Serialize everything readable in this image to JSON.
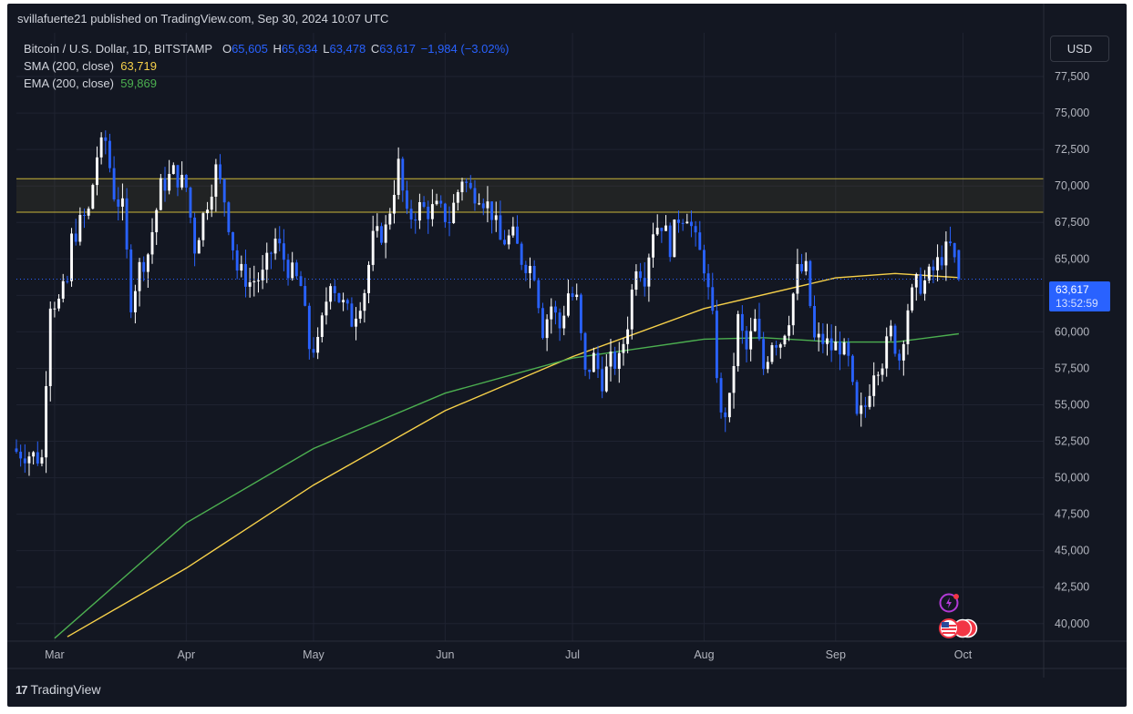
{
  "header": {
    "publisher": "svillafuerte21 published on TradingView.com, Sep 30, 2024 10:07 UTC"
  },
  "legend": {
    "symbol": "Bitcoin / U.S. Dollar, 1D, BITSTAMP",
    "open_label": "O",
    "open": "65,605",
    "high_label": "H",
    "high": "65,634",
    "low_label": "L",
    "low": "63,478",
    "close_label": "C",
    "close": "63,617",
    "change": "−1,984 (−3.02%)",
    "sma_label": "SMA (200, close)",
    "sma_value": "63,719",
    "ema_label": "EMA (200, close)",
    "ema_value": "59,869"
  },
  "toolbar": {
    "currency_button": "USD"
  },
  "price_tag": {
    "price": "63,617",
    "countdown": "13:52:59"
  },
  "footer": {
    "brand": "TradingView",
    "logo": "17"
  },
  "colors": {
    "background": "#131722",
    "bearish": "#2962ff",
    "bullish": "#ffffff",
    "sma": "#f7d14a",
    "ema": "#4caf50",
    "zone": "#c9b53a"
  },
  "icons": [
    "lightning-event-icon",
    "us-flag-economic-events-icon",
    "tradingview-logo-icon"
  ],
  "chart_data": {
    "type": "candlestick",
    "title": "Bitcoin / U.S. Dollar, 1D, BITSTAMP",
    "ylabel": "USD",
    "ylim": [
      38800,
      80500
    ],
    "y_ticks": [
      40000,
      42500,
      45000,
      47500,
      50000,
      52500,
      55000,
      57500,
      60000,
      62500,
      65000,
      67500,
      70000,
      72500,
      75000,
      77500
    ],
    "y_tick_labels": [
      "40,000",
      "42,500",
      "45,000",
      "47,500",
      "50,000",
      "52,500",
      "55,000",
      "57,500",
      "60,000",
      "62,500",
      "65,000",
      "67,500",
      "70,000",
      "72,500",
      "75,000",
      "77,500"
    ],
    "x_tick_labels": [
      "Mar",
      "Apr",
      "May",
      "Jun",
      "Jul",
      "Aug",
      "Sep",
      "Oct"
    ],
    "x_tick_dates": [
      "2024-03-01",
      "2024-04-01",
      "2024-05-01",
      "2024-06-01",
      "2024-07-01",
      "2024-08-01",
      "2024-09-01",
      "2024-10-01"
    ],
    "x_range": [
      "2024-02-21",
      "2024-10-20"
    ],
    "grid": true,
    "resistance_zone": {
      "low": 68200,
      "high": 70500
    },
    "last_price": 63617,
    "close_series": [
      [
        "2024-02-21",
        51800
      ],
      [
        "2024-02-24",
        51600
      ],
      [
        "2024-02-27",
        51300
      ],
      [
        "2024-02-28",
        57000
      ],
      [
        "2024-02-29",
        62200
      ],
      [
        "2024-03-02",
        62000
      ],
      [
        "2024-03-04",
        63400
      ],
      [
        "2024-03-05",
        66300
      ],
      [
        "2024-03-07",
        67400
      ],
      [
        "2024-03-09",
        68200
      ],
      [
        "2024-03-11",
        72100
      ],
      [
        "2024-03-13",
        73100
      ],
      [
        "2024-03-15",
        69500
      ],
      [
        "2024-03-17",
        68400
      ],
      [
        "2024-03-19",
        62100
      ],
      [
        "2024-03-21",
        64400
      ],
      [
        "2024-03-23",
        65400
      ],
      [
        "2024-03-26",
        69900
      ],
      [
        "2024-03-29",
        70900
      ],
      [
        "2024-04-01",
        69900
      ],
      [
        "2024-04-03",
        65800
      ],
      [
        "2024-04-06",
        69000
      ],
      [
        "2024-04-08",
        71100
      ],
      [
        "2024-04-10",
        69100
      ],
      [
        "2024-04-13",
        64300
      ],
      [
        "2024-04-16",
        63400
      ],
      [
        "2024-04-19",
        63800
      ],
      [
        "2024-04-22",
        66300
      ],
      [
        "2024-04-25",
        64400
      ],
      [
        "2024-04-28",
        63100
      ],
      [
        "2024-04-30",
        59000
      ],
      [
        "2024-05-02",
        59000
      ],
      [
        "2024-05-05",
        63800
      ],
      [
        "2024-05-07",
        62300
      ],
      [
        "2024-05-10",
        60800
      ],
      [
        "2024-05-13",
        62900
      ],
      [
        "2024-05-15",
        66300
      ],
      [
        "2024-05-18",
        67000
      ],
      [
        "2024-05-21",
        71400
      ],
      [
        "2024-05-23",
        67700
      ],
      [
        "2024-05-26",
        68500
      ],
      [
        "2024-05-28",
        68300
      ],
      [
        "2024-05-30",
        68400
      ],
      [
        "2024-06-02",
        67700
      ],
      [
        "2024-06-05",
        70600
      ],
      [
        "2024-06-07",
        69600
      ],
      [
        "2024-06-09",
        69600
      ],
      [
        "2024-06-12",
        68200
      ],
      [
        "2024-06-14",
        66200
      ],
      [
        "2024-06-17",
        66500
      ],
      [
        "2024-06-19",
        65000
      ],
      [
        "2024-06-22",
        64200
      ],
      [
        "2024-06-24",
        60200
      ],
      [
        "2024-06-26",
        61800
      ],
      [
        "2024-06-28",
        60300
      ],
      [
        "2024-06-30",
        62700
      ],
      [
        "2024-07-02",
        62100
      ],
      [
        "2024-07-04",
        57000
      ],
      [
        "2024-07-06",
        58200
      ],
      [
        "2024-07-08",
        56700
      ],
      [
        "2024-07-10",
        57900
      ],
      [
        "2024-07-12",
        57900
      ],
      [
        "2024-07-14",
        60700
      ],
      [
        "2024-07-16",
        64800
      ],
      [
        "2024-07-18",
        63900
      ],
      [
        "2024-07-20",
        67100
      ],
      [
        "2024-07-22",
        67500
      ],
      [
        "2024-07-24",
        65900
      ],
      [
        "2024-07-26",
        67900
      ],
      [
        "2024-07-28",
        68200
      ],
      [
        "2024-07-30",
        66100
      ],
      [
        "2024-08-01",
        64600
      ],
      [
        "2024-08-03",
        60700
      ],
      [
        "2024-08-05",
        54000
      ],
      [
        "2024-08-07",
        55100
      ],
      [
        "2024-08-09",
        60800
      ],
      [
        "2024-08-11",
        58700
      ],
      [
        "2024-08-13",
        60600
      ],
      [
        "2024-08-15",
        57500
      ],
      [
        "2024-08-17",
        59500
      ],
      [
        "2024-08-19",
        59400
      ],
      [
        "2024-08-21",
        61100
      ],
      [
        "2024-08-23",
        64100
      ],
      [
        "2024-08-25",
        64200
      ],
      [
        "2024-08-27",
        59400
      ],
      [
        "2024-08-29",
        59400
      ],
      [
        "2024-08-31",
        58900
      ],
      [
        "2024-09-02",
        59100
      ],
      [
        "2024-09-04",
        57900
      ],
      [
        "2024-09-06",
        53900
      ],
      [
        "2024-09-08",
        54900
      ],
      [
        "2024-09-10",
        57600
      ],
      [
        "2024-09-12",
        58100
      ],
      [
        "2024-09-14",
        60000
      ],
      [
        "2024-09-16",
        58200
      ],
      [
        "2024-09-18",
        61700
      ],
      [
        "2024-09-20",
        63200
      ],
      [
        "2024-09-22",
        63400
      ],
      [
        "2024-09-24",
        64200
      ],
      [
        "2024-09-26",
        65200
      ],
      [
        "2024-09-28",
        65800
      ],
      [
        "2024-09-30",
        63617
      ]
    ],
    "series": [
      {
        "name": "SMA (200, close)",
        "color": "#f7d14a",
        "points": [
          [
            "2024-03-04",
            39100
          ],
          [
            "2024-04-01",
            43800
          ],
          [
            "2024-05-01",
            49500
          ],
          [
            "2024-06-01",
            54600
          ],
          [
            "2024-07-01",
            58300
          ],
          [
            "2024-08-01",
            61600
          ],
          [
            "2024-09-01",
            63700
          ],
          [
            "2024-09-15",
            64000
          ],
          [
            "2024-09-30",
            63719
          ]
        ]
      },
      {
        "name": "EMA (200, close)",
        "color": "#4caf50",
        "points": [
          [
            "2024-03-01",
            39000
          ],
          [
            "2024-04-01",
            46900
          ],
          [
            "2024-05-01",
            52000
          ],
          [
            "2024-06-01",
            55800
          ],
          [
            "2024-07-01",
            58200
          ],
          [
            "2024-08-01",
            59500
          ],
          [
            "2024-08-15",
            59600
          ],
          [
            "2024-09-01",
            59300
          ],
          [
            "2024-09-15",
            59300
          ],
          [
            "2024-09-30",
            59869
          ]
        ]
      }
    ]
  }
}
